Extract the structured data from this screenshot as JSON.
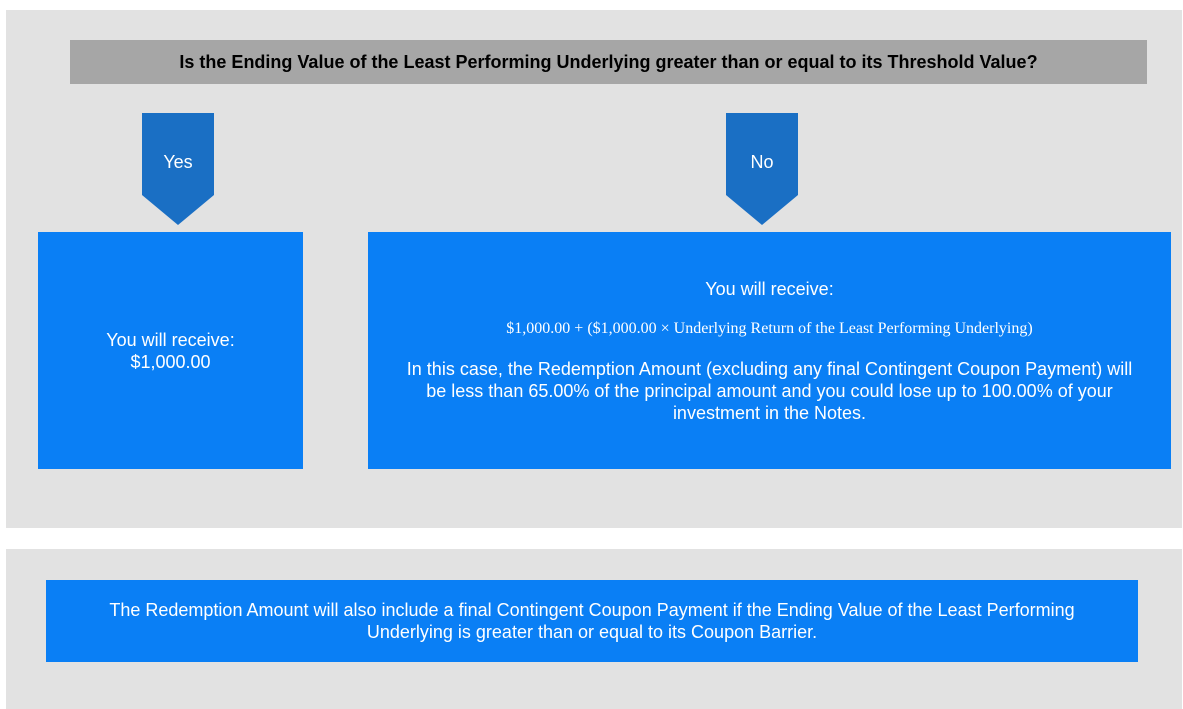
{
  "question": "Is the Ending Value of the Least Performing Underlying greater than or equal to its Threshold Value?",
  "branches": [
    {
      "label": "Yes",
      "lines": [
        "You will receive:",
        "$1,000.00"
      ]
    },
    {
      "label": "No",
      "heading": "You will receive:",
      "formula": "$1,000.00 + ($1,000.00 × Underlying Return of the Least Performing Underlying)",
      "text": "In this case, the Redemption Amount (excluding any final Contingent Coupon Payment) will be less than 65.00% of the principal amount and you could lose up to 100.00% of your investment in the Notes."
    }
  ],
  "footer": "The Redemption Amount will also include a final Contingent Coupon Payment if the Ending Value of the Least Performing Underlying is greater than or equal to its Coupon Barrier."
}
